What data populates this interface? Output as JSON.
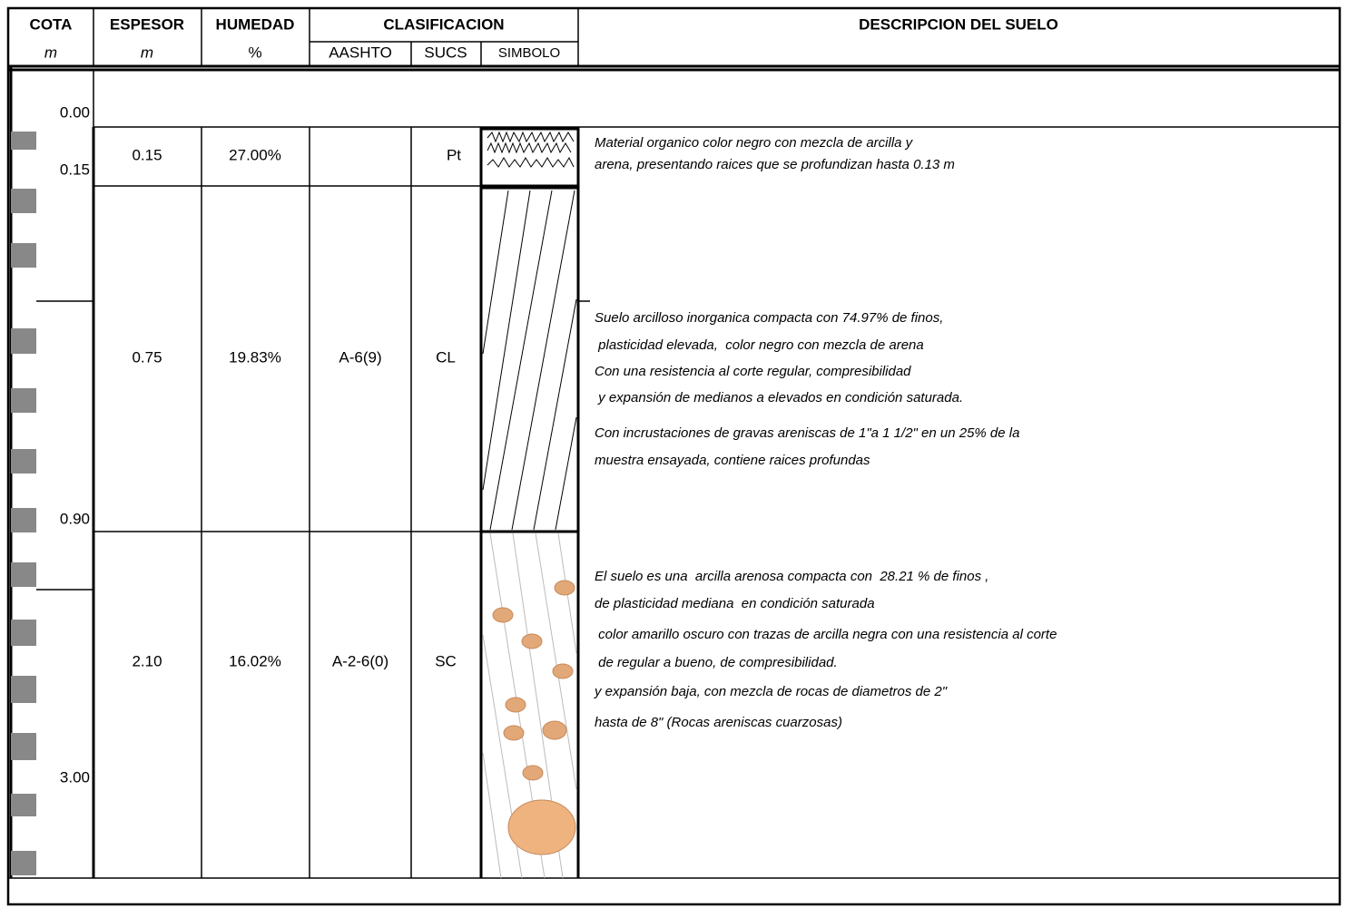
{
  "header": {
    "columns": [
      "COTA",
      "ESPESOR",
      "HUMEDAD",
      "CLASIFICACION",
      "DESCRIPCION DEL SUELO"
    ],
    "units": [
      "m",
      "m",
      "%"
    ],
    "subcolumns": [
      "AASHTO",
      "SUCS",
      "SIMBOLO"
    ]
  },
  "depths": [
    "0.00",
    "0.15",
    "0.90",
    "3.00"
  ],
  "layers": [
    {
      "espesor": "0.15",
      "humedad": "27.00%",
      "sucs": "Pt",
      "description": [
        "Material organico color negro con mezcla de arcilla y",
        "arena, presentando raices que se profundizan hasta 0.13 m"
      ]
    },
    {
      "espesor": "0.75",
      "humedad": "19.83%",
      "aashto": "A-6(9)",
      "sucs": "CL",
      "description": [
        "Suelo arcilloso inorganica compacta con 74.97% de finos,",
        " plasticidad elevada,  color negro con mezcla de arena",
        "Con una resistencia al corte regular, compresibilidad",
        " y expansión de medianos a elevados en condición saturada.",
        "Con incrustaciones de gravas areniscas de 1\"a 1 1/2\" en un 25% de la",
        "muestra ensayada, contiene raices profundas"
      ]
    },
    {
      "espesor": "2.10",
      "humedad": "16.02%",
      "aashto": "A-2-6(0)",
      "sucs": "SC",
      "description": [
        "El suelo es una  arcilla arenosa compacta con  28.21 % de finos ,",
        "de plasticidad mediana  en condición saturada",
        " color amarillo oscuro con trazas de arcilla negra con una resistencia al corte",
        " de regular a bueno, de compresibilidad.",
        "y expansión baja, con mezcla de rocas de diametros de 2\"",
        "hasta de 8\" (Rocas areniscas cuarzosas)"
      ]
    }
  ]
}
